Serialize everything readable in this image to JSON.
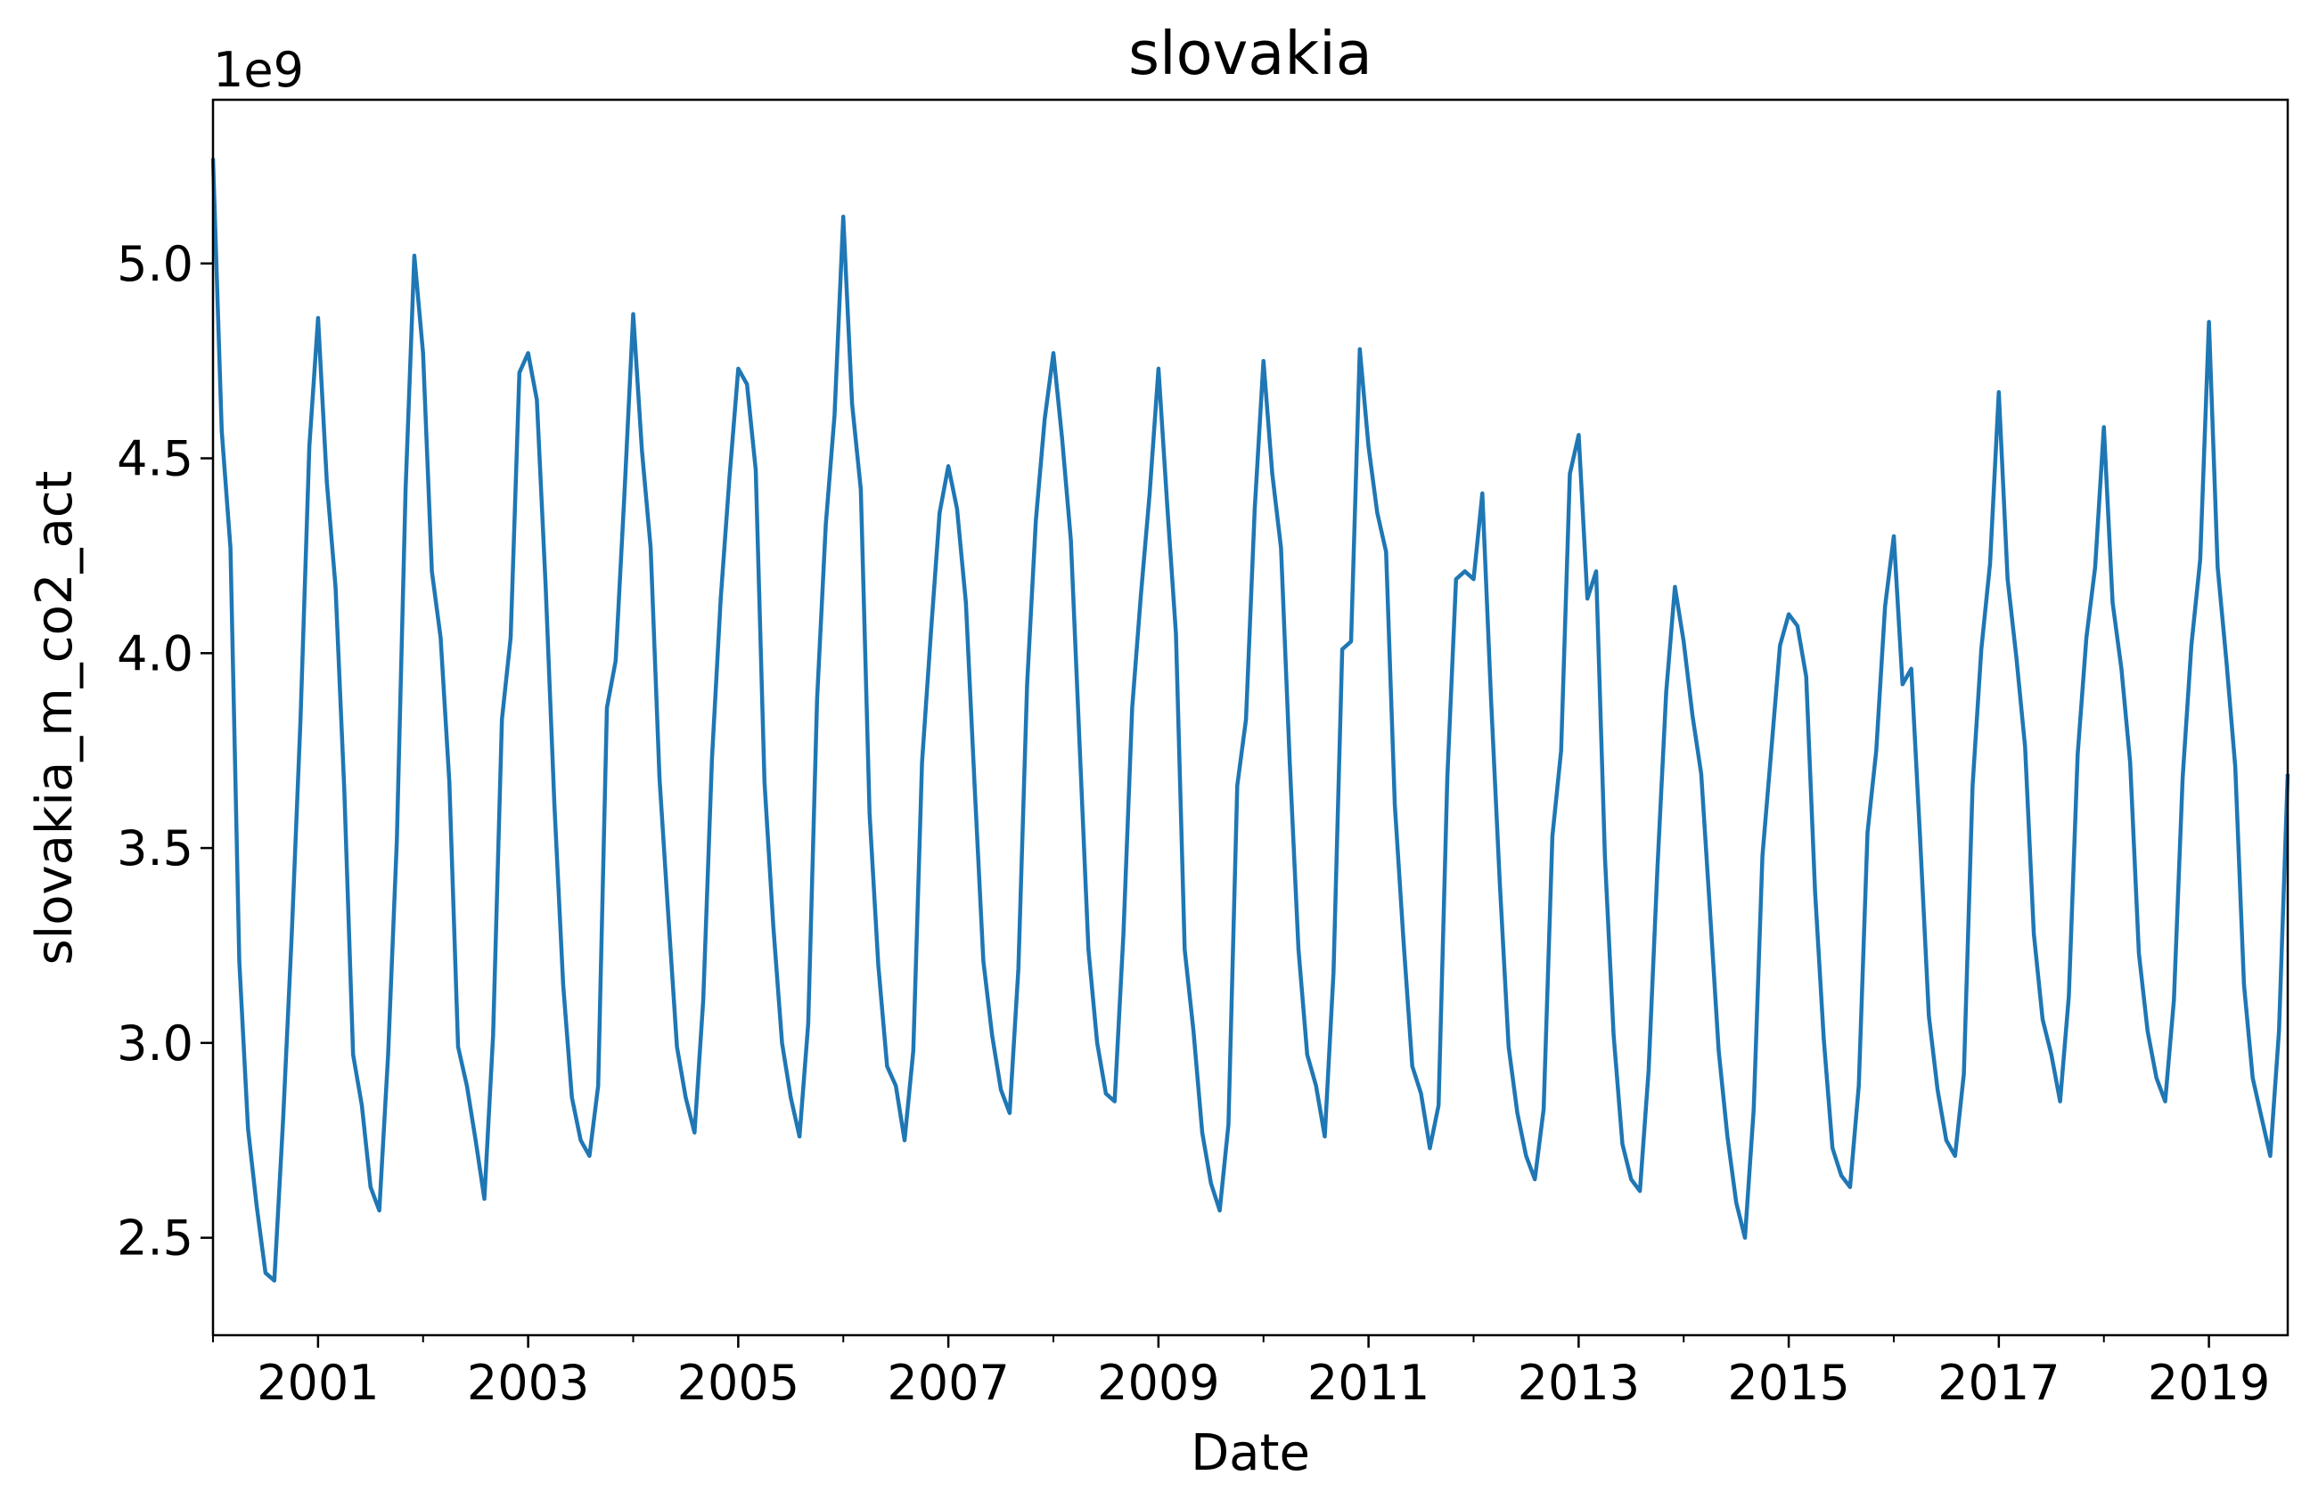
{
  "chart_data": {
    "type": "line",
    "title": "slovakia",
    "xlabel": "Date",
    "ylabel": "slovakia_m_co2_act",
    "offset_label": "1e9",
    "grid": false,
    "legend": "none",
    "line_color": "#1f77b4",
    "x_range": [
      "2000-01",
      "2019-10"
    ],
    "ylim": [
      2.25,
      5.42
    ],
    "y_ticks": [
      2.5,
      3.0,
      3.5,
      4.0,
      4.5,
      5.0
    ],
    "y_tick_labels": [
      "2.5",
      "3.0",
      "3.5",
      "4.0",
      "4.5",
      "5.0"
    ],
    "x_tick_labels": [
      "2001",
      "2003",
      "2005",
      "2007",
      "2009",
      "2011",
      "2013",
      "2015",
      "2017",
      "2019"
    ],
    "x_tick_years": [
      2001,
      2003,
      2005,
      2007,
      2009,
      2011,
      2013,
      2015,
      2017,
      2019
    ],
    "x_minor_years": [
      2000,
      2002,
      2004,
      2006,
      2008,
      2010,
      2012,
      2014,
      2016,
      2018
    ],
    "series": [
      {
        "start": "2000-01",
        "frequency": "monthly",
        "values": [
          5.27,
          4.57,
          4.27,
          3.21,
          2.78,
          2.58,
          2.41,
          2.39,
          2.8,
          3.28,
          3.83,
          4.53,
          4.86,
          4.44,
          4.17,
          3.65,
          2.97,
          2.84,
          2.63,
          2.57,
          2.97,
          3.52,
          4.42,
          5.02,
          4.77,
          4.21,
          4.04,
          3.67,
          2.99,
          2.89,
          2.75,
          2.6,
          3.02,
          3.83,
          4.04,
          4.72,
          4.77,
          4.65,
          4.17,
          3.61,
          3.15,
          2.86,
          2.75,
          2.71,
          2.89,
          3.86,
          3.98,
          4.41,
          4.87,
          4.52,
          4.27,
          3.68,
          3.33,
          2.99,
          2.86,
          2.77,
          3.11,
          3.73,
          4.14,
          4.45,
          4.73,
          4.69,
          4.47,
          3.67,
          3.3,
          3.0,
          2.86,
          2.76,
          3.05,
          3.88,
          4.33,
          4.61,
          5.12,
          4.64,
          4.42,
          3.59,
          3.2,
          2.94,
          2.89,
          2.75,
          2.98,
          3.72,
          4.05,
          4.36,
          4.48,
          4.37,
          4.13,
          3.66,
          3.21,
          3.02,
          2.88,
          2.82,
          3.19,
          3.92,
          4.34,
          4.6,
          4.77,
          4.55,
          4.29,
          3.76,
          3.24,
          3.0,
          2.87,
          2.85,
          3.28,
          3.86,
          4.15,
          4.41,
          4.73,
          4.38,
          4.05,
          3.24,
          3.03,
          2.77,
          2.64,
          2.57,
          2.79,
          3.66,
          3.83,
          4.37,
          4.75,
          4.46,
          4.27,
          3.72,
          3.24,
          2.97,
          2.89,
          2.76,
          3.18,
          4.01,
          4.03,
          4.78,
          4.53,
          4.36,
          4.26,
          3.61,
          3.26,
          2.94,
          2.87,
          2.73,
          2.84,
          3.68,
          4.19,
          4.21,
          4.19,
          4.41,
          3.88,
          3.41,
          2.99,
          2.82,
          2.71,
          2.65,
          2.83,
          3.53,
          3.75,
          4.46,
          4.56,
          4.14,
          4.21,
          3.48,
          3.02,
          2.74,
          2.65,
          2.62,
          2.93,
          3.45,
          3.9,
          4.17,
          4.03,
          3.84,
          3.69,
          3.34,
          2.98,
          2.76,
          2.59,
          2.5,
          2.83,
          3.48,
          3.75,
          4.02,
          4.1,
          4.07,
          3.94,
          3.39,
          3.01,
          2.73,
          2.66,
          2.63,
          2.89,
          3.54,
          3.75,
          4.12,
          4.3,
          3.92,
          3.96,
          3.53,
          3.07,
          2.88,
          2.75,
          2.71,
          2.92,
          3.66,
          4.01,
          4.23,
          4.67,
          4.19,
          3.99,
          3.76,
          3.28,
          3.06,
          2.97,
          2.85,
          3.12,
          3.74,
          4.04,
          4.22,
          4.58,
          4.13,
          3.96,
          3.72,
          3.23,
          3.03,
          2.91,
          2.85,
          3.11,
          3.68,
          4.02,
          4.24,
          4.85,
          4.22,
          3.98,
          3.71,
          3.15,
          2.91,
          2.81,
          2.71,
          3.03,
          3.69
        ]
      }
    ]
  }
}
